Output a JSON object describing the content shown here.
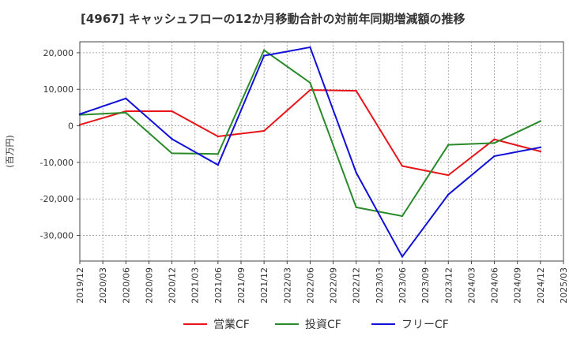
{
  "chart_data": {
    "type": "line",
    "title": "[4967]  キャッシュフローの12か月移動合計の対前年同期増減額の推移",
    "ylabel": "(百万円)",
    "xlabel": "",
    "x_ticks": [
      "2019/12",
      "2020/03",
      "2020/06",
      "2020/09",
      "2020/12",
      "2021/03",
      "2021/06",
      "2021/09",
      "2021/12",
      "2022/03",
      "2022/06",
      "2022/09",
      "2022/12",
      "2023/03",
      "2023/06",
      "2023/09",
      "2023/12",
      "2024/03",
      "2024/06",
      "2024/09",
      "2024/12",
      "2025/03"
    ],
    "y_ticks": [
      20000,
      10000,
      0,
      -10000,
      -20000,
      -30000
    ],
    "y_tick_labels": [
      "20,000",
      "10,000",
      "0",
      "-10,000",
      "-20,000",
      "-30,000"
    ],
    "ylim": [
      -37000,
      23000
    ],
    "grid": true,
    "legend_position": "bottom",
    "series": [
      {
        "name": "営業CF",
        "color": "#e8141a",
        "points": [
          {
            "x": "2019/12",
            "y": 300
          },
          {
            "x": "2020/06",
            "y": 4000
          },
          {
            "x": "2020/12",
            "y": 4000
          },
          {
            "x": "2021/06",
            "y": -2900
          },
          {
            "x": "2021/12",
            "y": -1400
          },
          {
            "x": "2022/06",
            "y": 9800
          },
          {
            "x": "2022/12",
            "y": 9600
          },
          {
            "x": "2023/06",
            "y": -11000
          },
          {
            "x": "2023/12",
            "y": -13500
          },
          {
            "x": "2024/06",
            "y": -3700
          },
          {
            "x": "2024/12",
            "y": -7000
          }
        ]
      },
      {
        "name": "投資CF",
        "color": "#2a8a2a",
        "points": [
          {
            "x": "2019/12",
            "y": 3000
          },
          {
            "x": "2020/06",
            "y": 3600
          },
          {
            "x": "2020/12",
            "y": -7500
          },
          {
            "x": "2021/06",
            "y": -7700
          },
          {
            "x": "2021/12",
            "y": 20700
          },
          {
            "x": "2022/06",
            "y": 11800
          },
          {
            "x": "2022/12",
            "y": -22300
          },
          {
            "x": "2023/06",
            "y": -24700
          },
          {
            "x": "2023/12",
            "y": -5200
          },
          {
            "x": "2024/06",
            "y": -4700
          },
          {
            "x": "2024/12",
            "y": 1300
          }
        ]
      },
      {
        "name": "フリーCF",
        "color": "#1010d8",
        "points": [
          {
            "x": "2019/12",
            "y": 3200
          },
          {
            "x": "2020/06",
            "y": 7500
          },
          {
            "x": "2020/12",
            "y": -3600
          },
          {
            "x": "2021/06",
            "y": -10700
          },
          {
            "x": "2021/12",
            "y": 19200
          },
          {
            "x": "2022/06",
            "y": 21500
          },
          {
            "x": "2022/12",
            "y": -12800
          },
          {
            "x": "2023/06",
            "y": -35800
          },
          {
            "x": "2023/12",
            "y": -18800
          },
          {
            "x": "2024/06",
            "y": -8300
          },
          {
            "x": "2024/12",
            "y": -5900
          }
        ]
      }
    ]
  }
}
